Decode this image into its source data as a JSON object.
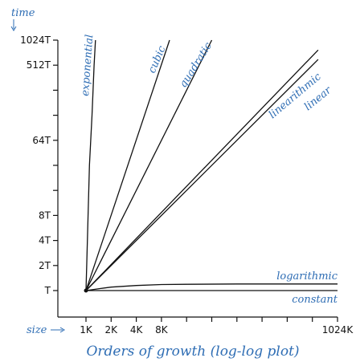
{
  "chart_data": {
    "type": "line",
    "title": "Orders of growth (log-log plot)",
    "ylabel": "time",
    "xlabel": "size",
    "scale": "log-log",
    "x_ticks": [
      {
        "label": "1K",
        "value": 1
      },
      {
        "label": "2K",
        "value": 2
      },
      {
        "label": "4K",
        "value": 4
      },
      {
        "label": "8K",
        "value": 8
      },
      {
        "label": "",
        "value": 16
      },
      {
        "label": "",
        "value": 32
      },
      {
        "label": "",
        "value": 64
      },
      {
        "label": "",
        "value": 128
      },
      {
        "label": "",
        "value": 256
      },
      {
        "label": "",
        "value": 512
      },
      {
        "label": "1024K",
        "value": 1024
      }
    ],
    "y_ticks": [
      {
        "label": "T",
        "value": 1
      },
      {
        "label": "2T",
        "value": 2
      },
      {
        "label": "4T",
        "value": 4
      },
      {
        "label": "8T",
        "value": 8
      },
      {
        "label": "",
        "value": 16
      },
      {
        "label": "",
        "value": 32
      },
      {
        "label": "64T",
        "value": 64
      },
      {
        "label": "",
        "value": 128
      },
      {
        "label": "",
        "value": 256
      },
      {
        "label": "512T",
        "value": 512
      },
      {
        "label": "1024T",
        "value": 1024
      }
    ],
    "xlim": [
      1,
      1024
    ],
    "ylim": [
      1,
      1024
    ],
    "series": [
      {
        "name": "constant",
        "x": [
          1,
          1024
        ],
        "y": [
          1,
          1
        ]
      },
      {
        "name": "logarithmic",
        "x": [
          1,
          1.5,
          2,
          4,
          8,
          16,
          64,
          256,
          1024
        ],
        "y": [
          1,
          1.06,
          1.1,
          1.15,
          1.18,
          1.19,
          1.2,
          1.2,
          1.2
        ]
      },
      {
        "name": "linear",
        "x": [
          1,
          600
        ],
        "y": [
          1,
          600
        ]
      },
      {
        "name": "linearithmic",
        "x": [
          1,
          600
        ],
        "y": [
          1,
          780
        ]
      },
      {
        "name": "quadratic",
        "x": [
          1,
          32
        ],
        "y": [
          1,
          1024
        ]
      },
      {
        "name": "cubic",
        "x": [
          1,
          10
        ],
        "y": [
          1,
          1024
        ]
      },
      {
        "name": "exponential",
        "x": [
          1,
          1.02,
          1.06,
          1.1,
          1.18,
          1.25,
          1.3
        ],
        "y": [
          1,
          2,
          8,
          32,
          128,
          512,
          1024
        ]
      }
    ]
  },
  "colors": {
    "annotation": "#2e6db4",
    "curve": "#111111"
  }
}
